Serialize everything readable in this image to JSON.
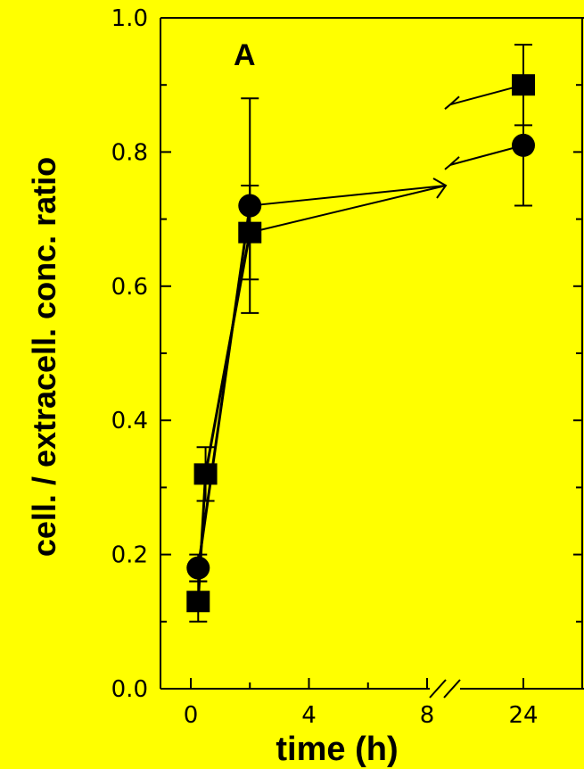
{
  "chart_data": {
    "type": "line",
    "panel_label": "A",
    "xlabel": "time (h)",
    "ylabel": "cell. / extracell. conc. ratio",
    "ylim": [
      0.0,
      1.0
    ],
    "y_ticks": [
      "0.0",
      "0.2",
      "0.4",
      "0.6",
      "0.8",
      "1.0"
    ],
    "x_ticks": [
      "0",
      "4",
      "8",
      "24"
    ],
    "x_axis_break": "between 8 and 24",
    "series": [
      {
        "marker": "circle",
        "points": [
          {
            "x": 0.25,
            "y": 0.18,
            "err": 0.02
          },
          {
            "x": 2,
            "y": 0.72,
            "err": 0.16
          },
          {
            "x": 24,
            "y": 0.81,
            "err": 0.09
          }
        ]
      },
      {
        "marker": "square",
        "points": [
          {
            "x": 0.25,
            "y": 0.13,
            "err": 0.03
          },
          {
            "x": 0.5,
            "y": 0.32,
            "err": 0.04
          },
          {
            "x": 2,
            "y": 0.68,
            "err": 0.07
          },
          {
            "x": 24,
            "y": 0.9,
            "err": 0.06
          }
        ]
      }
    ],
    "background": "#ffff00",
    "mark_color": "#000000"
  }
}
